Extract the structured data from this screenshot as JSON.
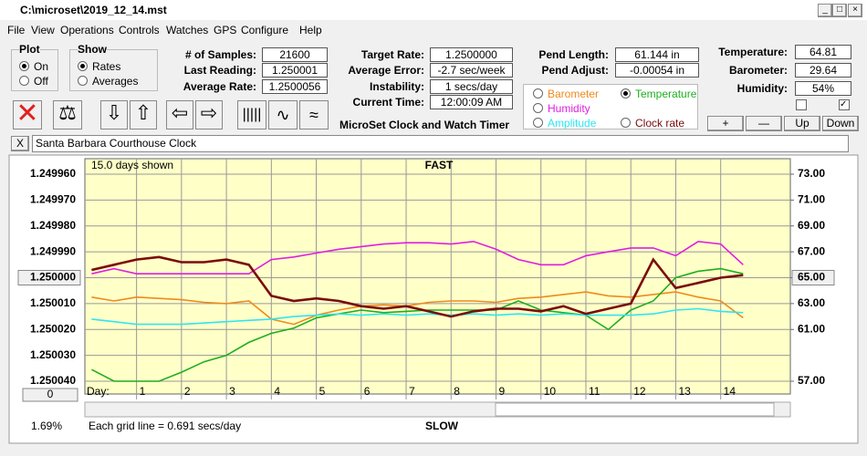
{
  "window": {
    "title": "C:\\microset\\2019_12_14.mst",
    "menu": [
      "File",
      "View",
      "Operations",
      "Controls",
      "Watches",
      "GPS",
      "Configure",
      "Help"
    ]
  },
  "plot_group": {
    "title": "Plot",
    "options": [
      "On",
      "Off"
    ],
    "selected": "On"
  },
  "show_group": {
    "title": "Show",
    "options": [
      "Rates",
      "Averages"
    ],
    "selected": "Rates"
  },
  "stats": [
    {
      "label": "# of Samples:",
      "value": "21600"
    },
    {
      "label": "Last Reading:",
      "value": "1.250001"
    },
    {
      "label": "Average Rate:",
      "value": "1.2500056"
    }
  ],
  "timing": [
    {
      "label": "Target Rate:",
      "value": "1.2500000"
    },
    {
      "label": "Average Error:",
      "value": "-2.7 sec/week"
    },
    {
      "label": "Instability:",
      "value": "1 secs/day"
    },
    {
      "label": "Current Time:",
      "value": "12:00:09 AM"
    }
  ],
  "app_name": "MicroSet Clock and Watch Timer",
  "pendulum": [
    {
      "label": "Pend Length:",
      "value": "61.144 in"
    },
    {
      "label": "Pend Adjust:",
      "value": "-0.00054 in"
    }
  ],
  "environment": [
    {
      "label": "Temperature:",
      "value": "64.81"
    },
    {
      "label": "Barometer:",
      "value": "29.64"
    },
    {
      "label": "Humidity:",
      "value": "54%"
    }
  ],
  "env_buttons": [
    "+",
    "—",
    "Up",
    "Down"
  ],
  "clock_name": "Santa Barbara Courthouse Clock",
  "close_button": "X",
  "chart_data": {
    "type": "line",
    "subtitle": "15.0 days shown",
    "top_label": "FAST",
    "bottom_label": "SLOW",
    "x_label": "Day:",
    "footnote": "Each grid line = 0.691 secs/day",
    "percent": "1.69%",
    "scroll_value": "0",
    "selected_series": "Temperature",
    "grid": true,
    "xlim": [
      -0.15,
      15.55
    ],
    "xticks": [
      1,
      2,
      3,
      4,
      5,
      6,
      7,
      8,
      9,
      10,
      11,
      12,
      13,
      14
    ],
    "ylim": [
      1.25004,
      1.24996
    ],
    "yticks": [
      {
        "value": 1.24996,
        "label": "1.249960"
      },
      {
        "value": 1.24997,
        "label": "1.249970"
      },
      {
        "value": 1.24998,
        "label": "1.249980"
      },
      {
        "value": 1.24999,
        "label": "1.249990"
      },
      {
        "value": 1.25,
        "label": "1.250000"
      },
      {
        "value": 1.25001,
        "label": "1.250010"
      },
      {
        "value": 1.25002,
        "label": "1.250020"
      },
      {
        "value": 1.25003,
        "label": "1.250030"
      },
      {
        "value": 1.25004,
        "label": "1.250040"
      }
    ],
    "y2lim": [
      57,
      73
    ],
    "y2ticks": [
      {
        "value": 73,
        "label": "73.00"
      },
      {
        "value": 71,
        "label": "71.00"
      },
      {
        "value": 69,
        "label": "69.00"
      },
      {
        "value": 67,
        "label": "67.00"
      },
      {
        "value": 65,
        "label": "65.00"
      },
      {
        "value": 63,
        "label": "63.00"
      },
      {
        "value": 61,
        "label": "61.00"
      },
      {
        "value": 57,
        "label": "57.00"
      }
    ],
    "x": [
      0,
      0.5,
      1,
      1.5,
      2,
      2.5,
      3,
      3.5,
      4,
      4.5,
      5,
      5.5,
      6,
      6.5,
      7,
      7.5,
      8,
      8.5,
      9,
      9.5,
      10,
      10.5,
      11,
      11.5,
      12,
      12.5,
      13,
      13.5,
      14,
      14.5
    ],
    "series": [
      {
        "name": "Barometer",
        "color": "#f08a1c",
        "axis": "y2",
        "values": [
          63.5,
          63.2,
          63.5,
          63.4,
          63.3,
          63.1,
          63.0,
          63.2,
          61.8,
          61.4,
          62.1,
          62.5,
          62.8,
          62.9,
          62.8,
          63.1,
          63.2,
          63.2,
          63.1,
          63.4,
          63.5,
          63.7,
          63.9,
          63.6,
          63.5,
          63.7,
          63.9,
          63.5,
          63.2,
          61.9
        ]
      },
      {
        "name": "Temperature",
        "color": "#1fae1f",
        "axis": "y2",
        "values": [
          57.9,
          57.0,
          57.0,
          57.0,
          57.7,
          58.5,
          59.0,
          60.0,
          60.7,
          61.1,
          61.9,
          62.2,
          62.5,
          62.3,
          62.4,
          62.5,
          62.5,
          62.5,
          62.5,
          63.2,
          62.5,
          62.3,
          62.1,
          61.0,
          62.5,
          63.2,
          65.0,
          65.5,
          65.7,
          65.3
        ]
      },
      {
        "name": "Humidity",
        "color": "#e01ee0",
        "axis": "y2",
        "values": [
          65.3,
          65.7,
          65.3,
          65.3,
          65.3,
          65.3,
          65.3,
          65.3,
          66.4,
          66.6,
          66.9,
          67.2,
          67.4,
          67.6,
          67.7,
          67.7,
          67.6,
          67.8,
          67.2,
          66.4,
          66.0,
          66.0,
          66.7,
          67.0,
          67.3,
          67.3,
          66.7,
          67.8,
          67.6,
          66.0
        ]
      },
      {
        "name": "Amplitude",
        "color": "#2ee6f2",
        "axis": "y2",
        "values": [
          61.8,
          61.6,
          61.4,
          61.4,
          61.4,
          61.5,
          61.6,
          61.7,
          61.8,
          62.0,
          62.1,
          62.2,
          62.1,
          62.2,
          62.1,
          62.2,
          62.1,
          62.2,
          62.1,
          62.2,
          62.1,
          62.2,
          62.1,
          62.1,
          62.1,
          62.2,
          62.5,
          62.6,
          62.4,
          62.3
        ]
      },
      {
        "name": "Clock rate",
        "color": "#7a0c0c",
        "values": [
          1.249997,
          1.249995,
          1.249993,
          1.249992,
          1.249994,
          1.249994,
          1.249993,
          1.249995,
          1.250007,
          1.250009,
          1.250008,
          1.250009,
          1.250011,
          1.250012,
          1.250011,
          1.250013,
          1.250015,
          1.250013,
          1.250012,
          1.250012,
          1.250013,
          1.250011,
          1.250014,
          1.250012,
          1.25001,
          1.249993,
          1.250004,
          1.250002,
          1.25,
          1.249999
        ]
      }
    ]
  }
}
